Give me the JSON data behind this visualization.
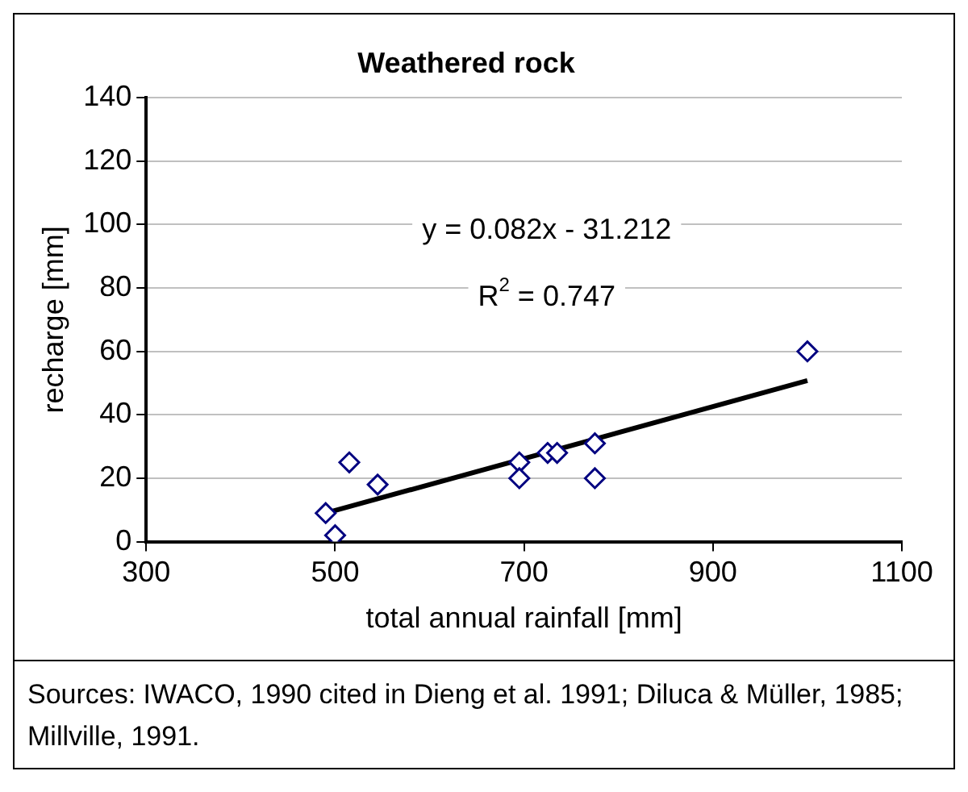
{
  "chart_data": {
    "type": "scatter",
    "title": "Weathered rock",
    "xlabel": "total annual rainfall [mm]",
    "ylabel": "recharge [mm]",
    "series": [
      {
        "color": "#000080",
        "marker": "diamond",
        "x": [
          490,
          500,
          515,
          545,
          695,
          695,
          725,
          735,
          775,
          775,
          1000
        ],
        "values": [
          9,
          2,
          25,
          18,
          25,
          20,
          28,
          28,
          31,
          20,
          60
        ]
      },
      {
        "type": "line",
        "color": "#000000",
        "marker": "none",
        "x": [
          490,
          1000
        ],
        "values": [
          9.0,
          50.8
        ]
      }
    ],
    "xlim": [
      300,
      1100
    ],
    "xticks": [
      300,
      500,
      700,
      900,
      1100
    ],
    "ylim": [
      0,
      140
    ],
    "yticks": [
      0,
      20,
      40,
      60,
      80,
      100,
      120,
      140
    ],
    "grid": "y",
    "legend": false,
    "annotations": [
      "y = 0.082x - 31.212",
      "R$^{2}$ = 0.747",
      "Sources: IWACO, 1990 cited in Dieng et al. 1991; Diluca & Müller, 1985; Millville, 1991."
    ]
  }
}
